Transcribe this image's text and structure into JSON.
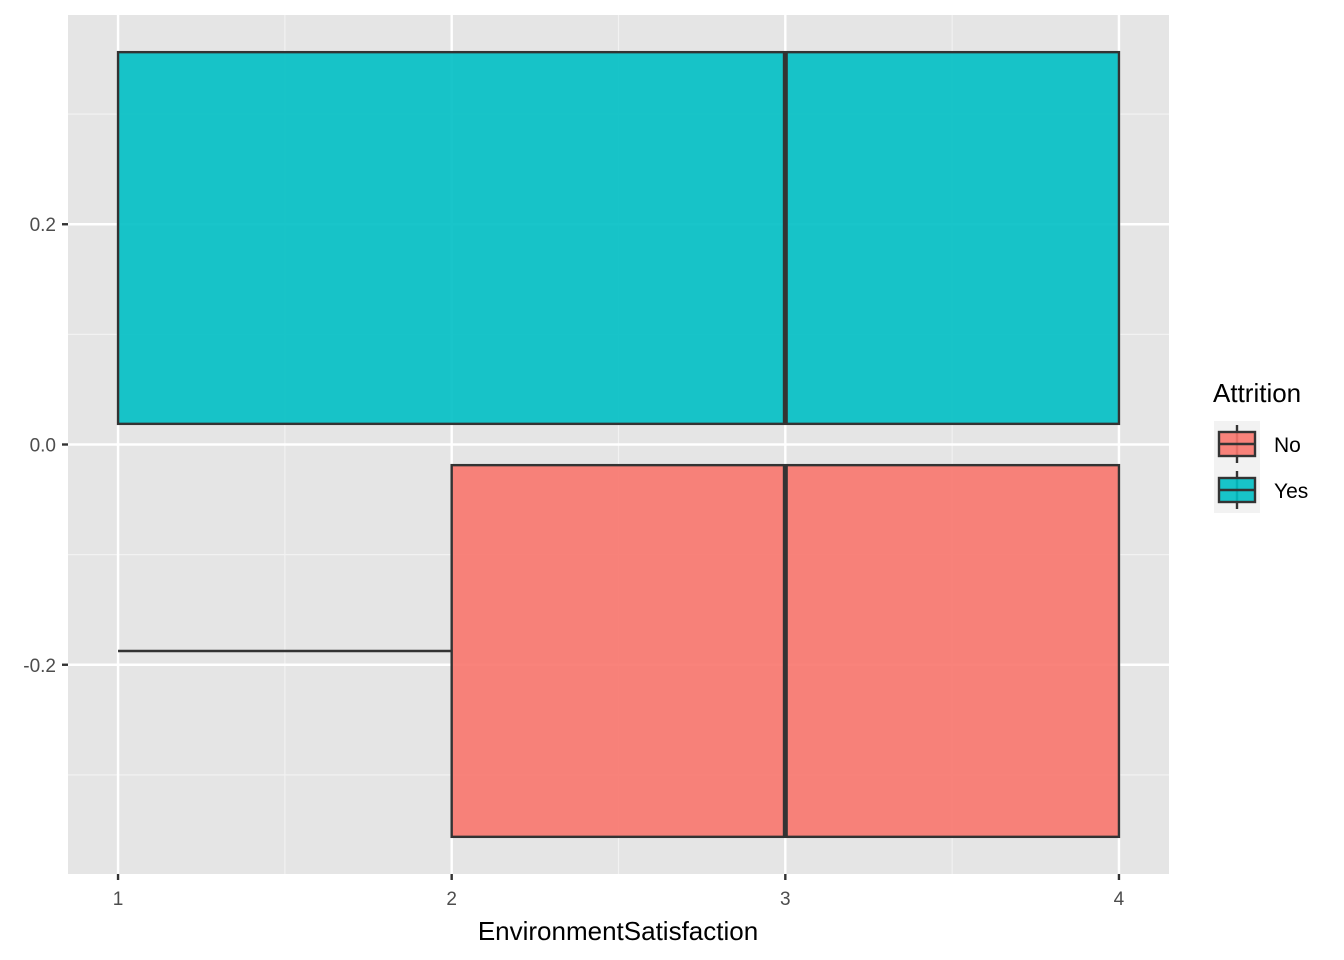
{
  "chart_data": {
    "type": "boxplot",
    "orientation": "horizontal",
    "title": "",
    "xlabel": "EnvironmentSatisfaction",
    "ylabel": "",
    "xlim": [
      0.85,
      4.15
    ],
    "ylim": [
      -0.39,
      0.39
    ],
    "x_ticks": [
      1,
      2,
      3,
      4
    ],
    "x_tick_labels": [
      "1",
      "2",
      "3",
      "4"
    ],
    "y_ticks": [
      -0.2,
      0.0,
      0.2
    ],
    "y_tick_labels": [
      "-0.2",
      "0.0",
      "0.2"
    ],
    "grid": true,
    "legend": {
      "title": "Attrition",
      "placement": "right",
      "entries": [
        {
          "label": "No",
          "color": "#F8766D"
        },
        {
          "label": "Yes",
          "color": "#00BFC4"
        }
      ]
    },
    "series": [
      {
        "name": "No",
        "color": "#F8766D",
        "y_center": -0.1875,
        "half_height": 0.16875,
        "min": 1,
        "q1": 2,
        "median": 3,
        "q3": 4,
        "max": 4
      },
      {
        "name": "Yes",
        "color": "#00BFC4",
        "y_center": 0.1875,
        "half_height": 0.16875,
        "min": 1,
        "q1": 1,
        "median": 3,
        "q3": 4,
        "max": 4
      }
    ]
  }
}
